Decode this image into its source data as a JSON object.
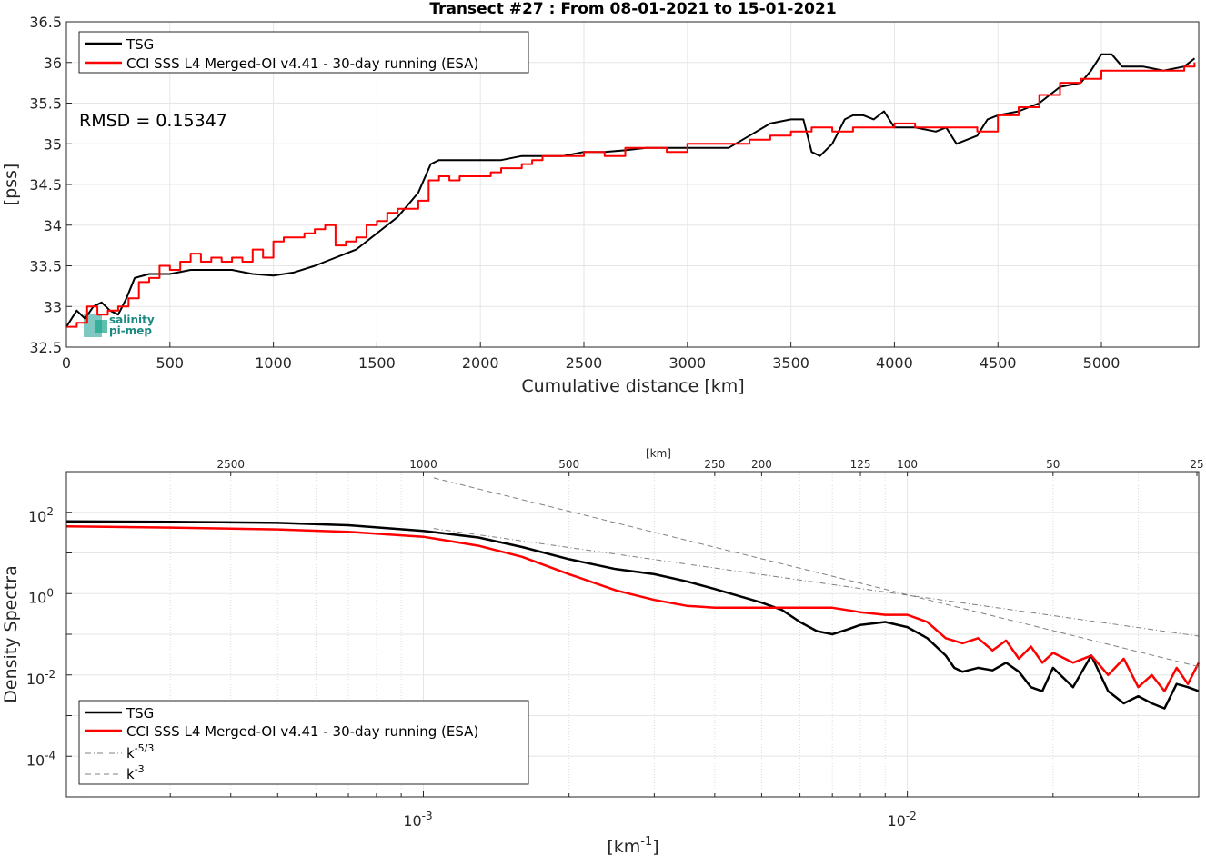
{
  "chart_data": [
    {
      "type": "line",
      "title": "Transect #27 : From 08-01-2021 to 15-01-2021",
      "xlabel": "Cumulative distance [km]",
      "ylabel": "[pss]",
      "xlim": [
        0,
        5470
      ],
      "ylim": [
        32.5,
        36.5
      ],
      "xticks": [
        0,
        500,
        1000,
        1500,
        2000,
        2500,
        3000,
        3500,
        4000,
        4500,
        5000
      ],
      "yticks": [
        32.5,
        33,
        33.5,
        34,
        34.5,
        35,
        35.5,
        36,
        36.5
      ],
      "grid": true,
      "legend_position": "top-left",
      "annotation": "RMSD = 0.15347",
      "logo_text": [
        "salinity",
        "pi-mep"
      ],
      "series": [
        {
          "name": "TSG",
          "color": "#000000",
          "x": [
            0,
            50,
            90,
            130,
            170,
            210,
            250,
            290,
            330,
            400,
            500,
            600,
            700,
            800,
            900,
            1000,
            1100,
            1200,
            1300,
            1400,
            1500,
            1600,
            1700,
            1760,
            1800,
            1900,
            2000,
            2100,
            2200,
            2300,
            2400,
            2500,
            2600,
            2700,
            2800,
            2900,
            3000,
            3100,
            3200,
            3300,
            3400,
            3500,
            3560,
            3600,
            3640,
            3700,
            3760,
            3800,
            3850,
            3900,
            3950,
            4000,
            4100,
            4200,
            4250,
            4300,
            4350,
            4400,
            4450,
            4500,
            4600,
            4700,
            4800,
            4900,
            4950,
            5000,
            5050,
            5100,
            5200,
            5300,
            5400,
            5450
          ],
          "values": [
            32.75,
            32.95,
            32.85,
            33.0,
            33.05,
            32.95,
            32.9,
            33.1,
            33.35,
            33.4,
            33.4,
            33.45,
            33.45,
            33.45,
            33.4,
            33.38,
            33.42,
            33.5,
            33.6,
            33.7,
            33.9,
            34.1,
            34.4,
            34.75,
            34.8,
            34.8,
            34.8,
            34.8,
            34.85,
            34.85,
            34.85,
            34.9,
            34.9,
            34.92,
            34.95,
            34.95,
            34.95,
            34.95,
            34.95,
            35.1,
            35.25,
            35.3,
            35.3,
            34.9,
            34.85,
            35.0,
            35.3,
            35.35,
            35.35,
            35.3,
            35.4,
            35.2,
            35.2,
            35.15,
            35.2,
            35.0,
            35.05,
            35.1,
            35.3,
            35.35,
            35.4,
            35.5,
            35.7,
            35.75,
            35.9,
            36.1,
            36.1,
            35.95,
            35.95,
            35.9,
            35.95,
            36.05
          ]
        },
        {
          "name": "CCI SSS L4 Merged-OI v4.41 - 30-day running (ESA)",
          "color": "#ff0000",
          "x": [
            0,
            50,
            100,
            150,
            200,
            250,
            300,
            350,
            400,
            450,
            500,
            550,
            600,
            650,
            700,
            750,
            800,
            850,
            900,
            950,
            1000,
            1050,
            1100,
            1150,
            1200,
            1250,
            1300,
            1350,
            1400,
            1450,
            1500,
            1550,
            1600,
            1650,
            1700,
            1750,
            1800,
            1850,
            1900,
            1950,
            2000,
            2050,
            2100,
            2150,
            2200,
            2250,
            2300,
            2400,
            2500,
            2600,
            2700,
            2800,
            2900,
            3000,
            3100,
            3200,
            3300,
            3400,
            3500,
            3600,
            3700,
            3800,
            3900,
            4000,
            4100,
            4200,
            4300,
            4400,
            4500,
            4600,
            4700,
            4800,
            4900,
            5000,
            5100,
            5200,
            5300,
            5400,
            5450
          ],
          "values": [
            32.75,
            32.8,
            33.0,
            32.9,
            32.95,
            33.0,
            33.1,
            33.3,
            33.35,
            33.5,
            33.45,
            33.55,
            33.65,
            33.55,
            33.6,
            33.55,
            33.6,
            33.55,
            33.7,
            33.6,
            33.8,
            33.85,
            33.85,
            33.9,
            33.95,
            34.0,
            33.75,
            33.8,
            33.85,
            34.0,
            34.05,
            34.15,
            34.2,
            34.2,
            34.3,
            34.55,
            34.6,
            34.55,
            34.6,
            34.6,
            34.6,
            34.65,
            34.7,
            34.7,
            34.75,
            34.8,
            34.85,
            34.85,
            34.9,
            34.85,
            34.95,
            34.95,
            34.9,
            35.0,
            35.0,
            35.0,
            35.05,
            35.1,
            35.15,
            35.2,
            35.15,
            35.2,
            35.2,
            35.25,
            35.2,
            35.2,
            35.2,
            35.15,
            35.35,
            35.45,
            35.6,
            35.75,
            35.8,
            35.9,
            35.9,
            35.9,
            35.9,
            35.95,
            36.0
          ]
        }
      ]
    },
    {
      "type": "line",
      "title": "",
      "xlabel": "[km-1]",
      "ylabel": "Density Spectra",
      "x_scale": "log",
      "y_scale": "log",
      "xlim": [
        0.000183,
        0.04
      ],
      "ylim": [
        1e-05,
        1000
      ],
      "x_tick_labels": [
        "10-3",
        "10-2"
      ],
      "y_tick_labels": [
        "10-4",
        "10-2",
        "100",
        "102"
      ],
      "top_axis_label": "[km]",
      "top_axis_ticks": [
        2500,
        1000,
        500,
        250,
        200,
        125,
        100,
        50,
        25
      ],
      "grid": true,
      "legend_position": "bottom-left",
      "series": [
        {
          "name": "TSG",
          "color": "#000000",
          "x": [
            0.000183,
            0.0003,
            0.0005,
            0.0007,
            0.001,
            0.0013,
            0.0016,
            0.002,
            0.0025,
            0.003,
            0.0035,
            0.004,
            0.005,
            0.0055,
            0.006,
            0.0065,
            0.007,
            0.0075,
            0.008,
            0.009,
            0.01,
            0.011,
            0.012,
            0.0125,
            0.013,
            0.014,
            0.015,
            0.016,
            0.017,
            0.018,
            0.019,
            0.02,
            0.022,
            0.024,
            0.026,
            0.028,
            0.03,
            0.032,
            0.034,
            0.036,
            0.038,
            0.04
          ],
          "values": [
            60,
            58,
            55,
            48,
            35,
            24,
            14,
            7,
            4,
            3,
            2,
            1.3,
            0.6,
            0.4,
            0.2,
            0.12,
            0.1,
            0.13,
            0.17,
            0.2,
            0.15,
            0.08,
            0.03,
            0.015,
            0.012,
            0.015,
            0.013,
            0.02,
            0.012,
            0.005,
            0.004,
            0.015,
            0.005,
            0.03,
            0.004,
            0.002,
            0.003,
            0.002,
            0.0015,
            0.006,
            0.005,
            0.004
          ]
        },
        {
          "name": "CCI SSS L4 Merged-OI v4.41 - 30-day running (ESA)",
          "color": "#ff0000",
          "x": [
            0.000183,
            0.0003,
            0.0005,
            0.0007,
            0.001,
            0.0013,
            0.0016,
            0.002,
            0.0025,
            0.003,
            0.0035,
            0.004,
            0.005,
            0.006,
            0.007,
            0.008,
            0.009,
            0.01,
            0.011,
            0.012,
            0.013,
            0.014,
            0.015,
            0.016,
            0.017,
            0.018,
            0.019,
            0.02,
            0.022,
            0.024,
            0.026,
            0.028,
            0.03,
            0.032,
            0.034,
            0.036,
            0.038,
            0.04
          ],
          "values": [
            45,
            42,
            38,
            33,
            25,
            15,
            8,
            3,
            1.2,
            0.7,
            0.5,
            0.45,
            0.45,
            0.45,
            0.45,
            0.35,
            0.3,
            0.3,
            0.2,
            0.08,
            0.06,
            0.08,
            0.04,
            0.07,
            0.025,
            0.05,
            0.02,
            0.035,
            0.02,
            0.03,
            0.01,
            0.025,
            0.005,
            0.01,
            0.004,
            0.015,
            0.006,
            0.02
          ]
        },
        {
          "name": "k-5/3",
          "color": "#808080",
          "x": [
            0.00105,
            0.04
          ],
          "values": [
            40,
            0.09
          ]
        },
        {
          "name": "k-3",
          "color": "#808080",
          "x": [
            0.00105,
            0.04
          ],
          "values": [
            700,
            0.016
          ]
        }
      ]
    }
  ]
}
